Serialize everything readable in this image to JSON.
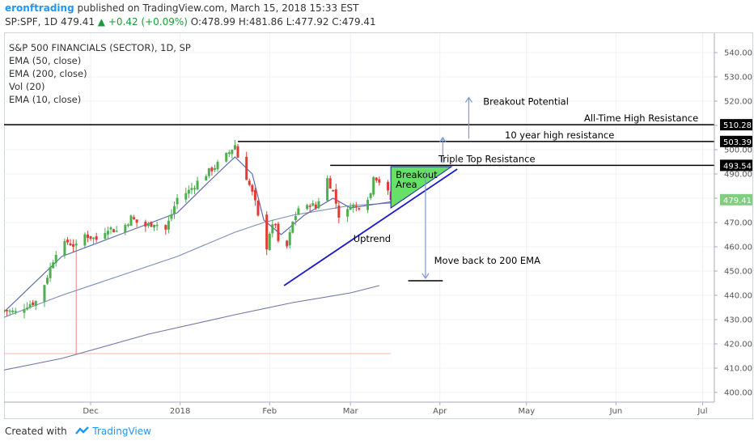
{
  "header": {
    "author": "eronftrading",
    "published": "published on TradingView.com, March 15, 2018 15:33 EST",
    "symbol_line": "SP:SPF, 1D 479.41",
    "change": "▲ +0.42 (+0.09%)",
    "ohlc": "O:478.99 H:481.86 L:477.92 C:479.41"
  },
  "legend": [
    "S&P 500 FINANCIALS (SECTOR), 1D, SP",
    "EMA (50, close)",
    "EMA (200, close)",
    "Vol (20)",
    "EMA (10, close)"
  ],
  "footer": {
    "created_with": "Created with",
    "brand": "TradingView"
  },
  "colors": {
    "up": "#4caf50",
    "down": "#e53935",
    "ema50": "#7b8bbd",
    "ema200": "#6f75a8",
    "ema10": "#5b6bb0",
    "trendline": "#1a1acc",
    "arrow": "#7a9ad6",
    "breakout_fill": "#66e066",
    "price_box": "#7ed07e",
    "level_box": "#000000"
  },
  "chart_data": {
    "type": "candlestick",
    "ylim": [
      396,
      548
    ],
    "y_ticks": [
      400,
      410,
      420,
      430,
      440,
      450,
      460,
      470,
      480,
      490,
      500,
      510,
      520,
      530,
      540
    ],
    "y_tick_labels": [
      "400.00",
      "410.00",
      "420.00",
      "430.00",
      "440.00",
      "450.00",
      "460.00",
      "470.00",
      "480.00",
      "490.00",
      "500.00",
      "510.00",
      "520.00",
      "530.00",
      "540.00"
    ],
    "x_ticks": [
      {
        "label": "Dec",
        "day": 30
      },
      {
        "label": "2018",
        "day": 61
      },
      {
        "label": "Feb",
        "day": 92
      },
      {
        "label": "Mar",
        "day": 120
      },
      {
        "label": "Apr",
        "day": 151
      },
      {
        "label": "May",
        "day": 181
      },
      {
        "label": "Jun",
        "day": 212
      },
      {
        "label": "Jul",
        "day": 242
      }
    ],
    "x_range_days": [
      0,
      247
    ],
    "close_anchors": [
      [
        0,
        434
      ],
      [
        4,
        433
      ],
      [
        8,
        436
      ],
      [
        12,
        438
      ],
      [
        15,
        448
      ],
      [
        18,
        458
      ],
      [
        22,
        462
      ],
      [
        25,
        460
      ],
      [
        28,
        465
      ],
      [
        32,
        463
      ],
      [
        36,
        468
      ],
      [
        40,
        466
      ],
      [
        44,
        472
      ],
      [
        48,
        468
      ],
      [
        52,
        470
      ],
      [
        56,
        467
      ],
      [
        60,
        480
      ],
      [
        64,
        483
      ],
      [
        68,
        488
      ],
      [
        72,
        492
      ],
      [
        76,
        496
      ],
      [
        78,
        499
      ],
      [
        80,
        502
      ],
      [
        81,
        497
      ],
      [
        83,
        492
      ],
      [
        86,
        482
      ],
      [
        87,
        478
      ],
      [
        89,
        466
      ],
      [
        91,
        460
      ],
      [
        92,
        466
      ],
      [
        94,
        470
      ],
      [
        96,
        452
      ],
      [
        98,
        460
      ],
      [
        100,
        470
      ],
      [
        102,
        476
      ],
      [
        104,
        474
      ],
      [
        106,
        478
      ],
      [
        108,
        476
      ],
      [
        110,
        483
      ],
      [
        112,
        488
      ],
      [
        114,
        483
      ],
      [
        116,
        473
      ],
      [
        118,
        471
      ],
      [
        120,
        478
      ],
      [
        122,
        476
      ],
      [
        124,
        478
      ],
      [
        127,
        482
      ],
      [
        128,
        490
      ],
      [
        130,
        487
      ],
      [
        131,
        485
      ],
      [
        133,
        482
      ],
      [
        134,
        479.4
      ]
    ],
    "price_label": "479.41",
    "overlays": {
      "ema200": [
        [
          -1,
          409
        ],
        [
          20,
          414
        ],
        [
          50,
          424
        ],
        [
          80,
          432
        ],
        [
          100,
          437
        ],
        [
          120,
          441
        ],
        [
          130,
          444
        ]
      ],
      "ema50": [
        [
          -1,
          430.5
        ],
        [
          20,
          440
        ],
        [
          40,
          448
        ],
        [
          60,
          456
        ],
        [
          80,
          466
        ],
        [
          90,
          470
        ],
        [
          100,
          473
        ],
        [
          120,
          477
        ],
        [
          134,
          478
        ]
      ],
      "ema10": [
        [
          -1,
          432
        ],
        [
          20,
          456
        ],
        [
          40,
          465
        ],
        [
          60,
          474
        ],
        [
          72,
          488
        ],
        [
          80,
          497
        ],
        [
          86,
          490
        ],
        [
          90,
          471
        ],
        [
          96,
          465
        ],
        [
          104,
          473
        ],
        [
          114,
          480
        ],
        [
          120,
          476
        ],
        [
          134,
          478.5
        ]
      ]
    },
    "horizontal_levels": [
      {
        "price": 510.28,
        "label": "All-Time High Resistance",
        "box": "510.28",
        "from_day": -2
      },
      {
        "price": 503.39,
        "label": "10 year high resistance",
        "box": "503.39",
        "from_day": 81
      },
      {
        "price": 493.54,
        "label": "Triple Top Resistance",
        "box": "493.54",
        "from_day": 113
      }
    ],
    "trendline": {
      "from": [
        97,
        444
      ],
      "to": [
        157,
        492
      ]
    },
    "breakout_area": {
      "label_line1": "Breakout",
      "label_line2": "Area",
      "points": [
        [
          134,
          493
        ],
        [
          155,
          493
        ],
        [
          134,
          476
        ]
      ]
    },
    "annotations": [
      {
        "text": "Breakout Potential",
        "day": 166,
        "price": 518.5
      },
      {
        "text": "Uptrend",
        "day": 121,
        "price": 462
      },
      {
        "text": "Move back to 200 EMA",
        "day": 149,
        "price": 453
      }
    ],
    "arrows": [
      {
        "day": 161,
        "from": 504.5,
        "to": 521.5
      },
      {
        "day": 152,
        "from": 494.5,
        "to": 505
      },
      {
        "day": 146,
        "from": 491.5,
        "to": 447
      }
    ],
    "target_line": {
      "price": 446,
      "from_day": 140,
      "to_day": 152
    },
    "low_marker": {
      "price": 416,
      "from_day": -2,
      "to_day": 134
    },
    "wick_marker": {
      "day": 25,
      "price_top": 462,
      "price_bottom": 416
    }
  }
}
